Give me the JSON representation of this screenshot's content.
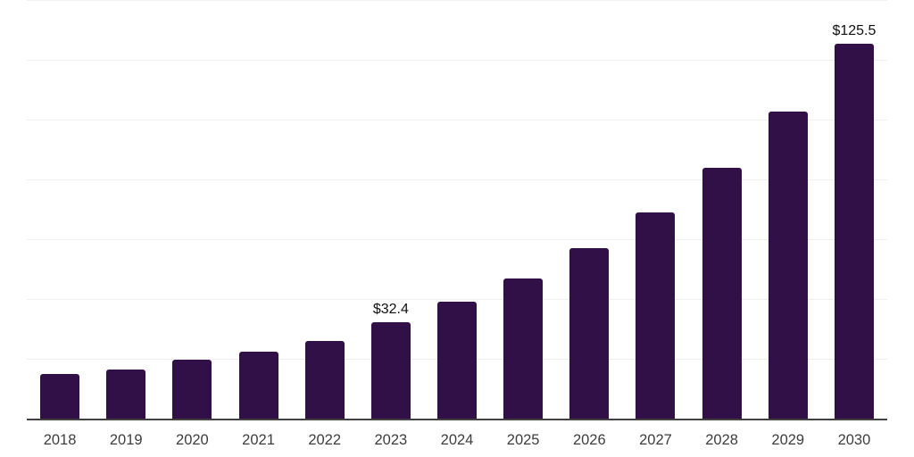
{
  "chart_data": {
    "type": "bar",
    "title": "",
    "xlabel": "",
    "ylabel": "",
    "categories": [
      "2018",
      "2019",
      "2020",
      "2021",
      "2022",
      "2023",
      "2024",
      "2025",
      "2026",
      "2027",
      "2028",
      "2029",
      "2030"
    ],
    "values": [
      15.2,
      16.8,
      19.9,
      22.6,
      26.2,
      32.4,
      39.2,
      47.2,
      57.3,
      69.2,
      84.0,
      102.8,
      125.5
    ],
    "point_labels": [
      "",
      "",
      "",
      "",
      "",
      "$32.4",
      "",
      "",
      "",
      "",
      "",
      "",
      "$125.5"
    ],
    "ylim": [
      0,
      140
    ],
    "grid_step": 20,
    "grid": "horizontal-only",
    "legend_position": "none",
    "colors": {
      "bar": "#310F47",
      "axis": "#414141",
      "gridline": "#efefef",
      "tick_label": "#3d3d3d",
      "value_label": "#111111",
      "background": "#ffffff"
    }
  }
}
